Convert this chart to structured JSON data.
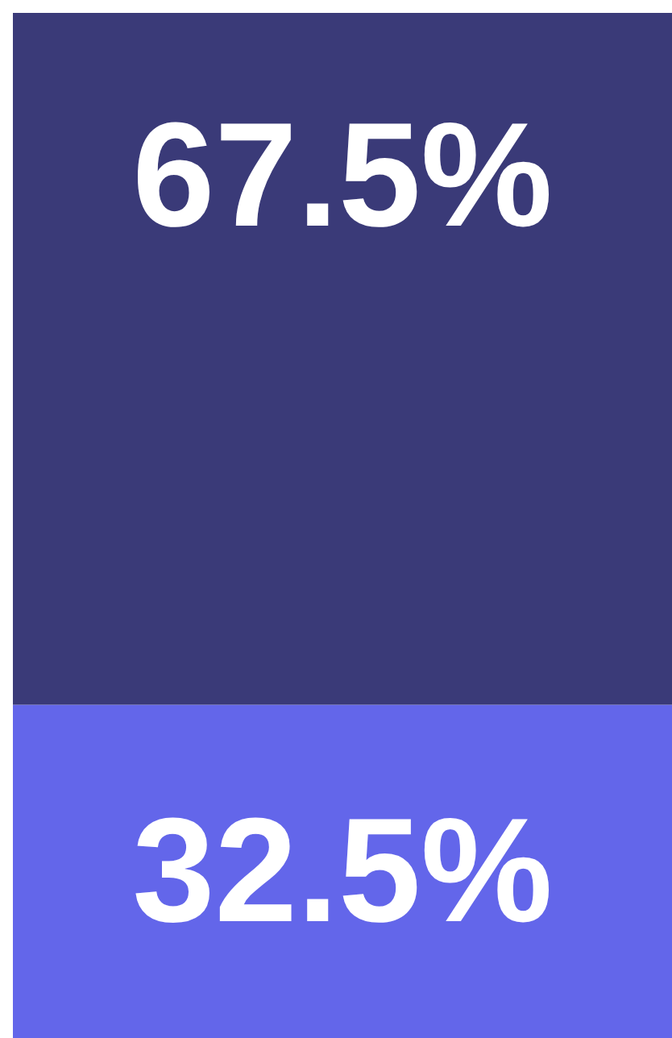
{
  "chart_data": {
    "type": "bar",
    "stacked": true,
    "categories": [
      null
    ],
    "series": [
      {
        "color": "#6366ea",
        "values": [
          32.5
        ],
        "value_labels": [
          "32.5%"
        ]
      },
      {
        "color": "#3a3a78",
        "values": [
          67.5
        ],
        "value_labels": [
          "67.5%"
        ]
      }
    ]
  }
}
